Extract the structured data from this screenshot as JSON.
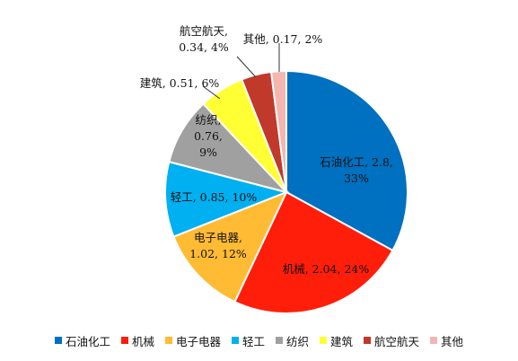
{
  "chart_data": {
    "type": "pie",
    "title": "",
    "legend_position": "bottom",
    "slices": [
      {
        "name": "石油化工",
        "value": 2.8,
        "percent": "33%",
        "color": "#0070c0",
        "label_lines": [
          "石油化工, 2.8,",
          "33%"
        ]
      },
      {
        "name": "机械",
        "value": 2.04,
        "percent": "24%",
        "color": "#ff1e0a",
        "label_lines": [
          "机械, 2.04, 24%"
        ]
      },
      {
        "name": "电子电器",
        "value": 1.02,
        "percent": "12%",
        "color": "#ffbb33",
        "label_lines": [
          "电子电器,",
          "1.02, 12%"
        ]
      },
      {
        "name": "轻工",
        "value": 0.85,
        "percent": "10%",
        "color": "#00b0f0",
        "label_lines": [
          "轻工, 0.85, 10%"
        ]
      },
      {
        "name": "纺织",
        "value": 0.76,
        "percent": "9%",
        "color": "#a0a0a0",
        "label_lines": [
          "纺织,",
          "0.76,",
          "9%"
        ]
      },
      {
        "name": "建筑",
        "value": 0.51,
        "percent": "6%",
        "color": "#ffff33",
        "label_lines": [
          "建筑, 0.51, 6%"
        ]
      },
      {
        "name": "航空航天",
        "value": 0.34,
        "percent": "4%",
        "color": "#c0392b",
        "label_lines": [
          "航空航天,",
          "0.34, 4%"
        ]
      },
      {
        "name": "其他",
        "value": 0.17,
        "percent": "2%",
        "color": "#f4b6b0",
        "label_lines": [
          "其他, 0.17, 2%"
        ]
      }
    ]
  }
}
